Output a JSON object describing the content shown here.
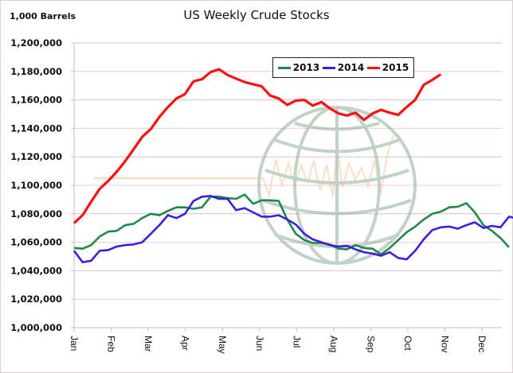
{
  "chart_data": {
    "type": "line",
    "title": "US Weekly Crude Stocks",
    "ylabel": "1,000 Barrels",
    "xlabel": "",
    "ylim": [
      1000000,
      1200000
    ],
    "yticks": [
      "1,000,000",
      "1,020,000",
      "1,040,000",
      "1,060,000",
      "1,080,000",
      "1,100,000",
      "1,120,000",
      "1,140,000",
      "1,160,000",
      "1,180,000",
      "1,200,000"
    ],
    "ytick_values": [
      1000000,
      1020000,
      1040000,
      1060000,
      1080000,
      1100000,
      1120000,
      1140000,
      1160000,
      1180000,
      1200000
    ],
    "categories": [
      "Jan",
      "Feb",
      "Mar",
      "Apr",
      "May",
      "Jun",
      "Jul",
      "Aug",
      "Sep",
      "Oct",
      "Nov",
      "Dec"
    ],
    "x_unit": "week",
    "grid": true,
    "legend": "top-right",
    "series": [
      {
        "name": "2013",
        "color": "#1e8a4a",
        "values": [
          1056000,
          1055500,
          1058000,
          1064000,
          1067500,
          1068000,
          1072000,
          1073000,
          1077000,
          1080000,
          1079000,
          1082000,
          1084500,
          1084500,
          1083500,
          1084500,
          1092000,
          1092000,
          1091000,
          1090500,
          1093500,
          1087000,
          1089500,
          1089500,
          1089000,
          1076000,
          1066000,
          1061500,
          1059500,
          1059500,
          1058500,
          1055500,
          1055000,
          1058000,
          1056000,
          1055500,
          1051500,
          1056000,
          1061500,
          1067000,
          1071000,
          1076000,
          1080000,
          1081500,
          1084500,
          1085000,
          1087500,
          1081000,
          1072000,
          1068000,
          1063000,
          1056500
        ]
      },
      {
        "name": "2014",
        "color": "#3b1fe0",
        "values": [
          1054000,
          1046000,
          1047000,
          1054000,
          1054500,
          1057000,
          1058000,
          1058500,
          1060000,
          1066000,
          1072000,
          1079000,
          1077000,
          1080000,
          1089000,
          1092000,
          1092500,
          1090500,
          1090500,
          1082500,
          1084000,
          1081000,
          1078000,
          1078000,
          1079000,
          1076000,
          1072500,
          1066000,
          1062000,
          1060000,
          1058000,
          1057000,
          1057500,
          1055000,
          1053000,
          1052000,
          1050500,
          1053000,
          1049000,
          1048000,
          1054000,
          1062000,
          1068500,
          1070500,
          1071000,
          1069500,
          1072000,
          1074000,
          1070000,
          1071500,
          1070500,
          1078000,
          1076500
        ]
      },
      {
        "name": "2015",
        "color": "#ff1010",
        "values": [
          1073500,
          1079000,
          1088500,
          1097500,
          1103000,
          1109500,
          1117000,
          1125500,
          1134000,
          1139500,
          1148000,
          1155000,
          1161000,
          1164000,
          1173000,
          1174500,
          1179500,
          1181500,
          1177500,
          1175000,
          1172500,
          1171000,
          1169500,
          1163000,
          1161000,
          1156500,
          1159500,
          1160000,
          1156000,
          1158500,
          1154000,
          1150500,
          1149000,
          1151000,
          1146000,
          1150500,
          1153000,
          1151000,
          1149500,
          1155000,
          1160000,
          1170500,
          1174000,
          1178000
        ]
      }
    ]
  },
  "legend": {
    "items": [
      {
        "label": "2013",
        "color": "#1e8a4a"
      },
      {
        "label": "2014",
        "color": "#3b1fe0"
      },
      {
        "label": "2015",
        "color": "#ff1010"
      }
    ]
  },
  "watermark": {
    "icon": "globe-logo-icon"
  }
}
